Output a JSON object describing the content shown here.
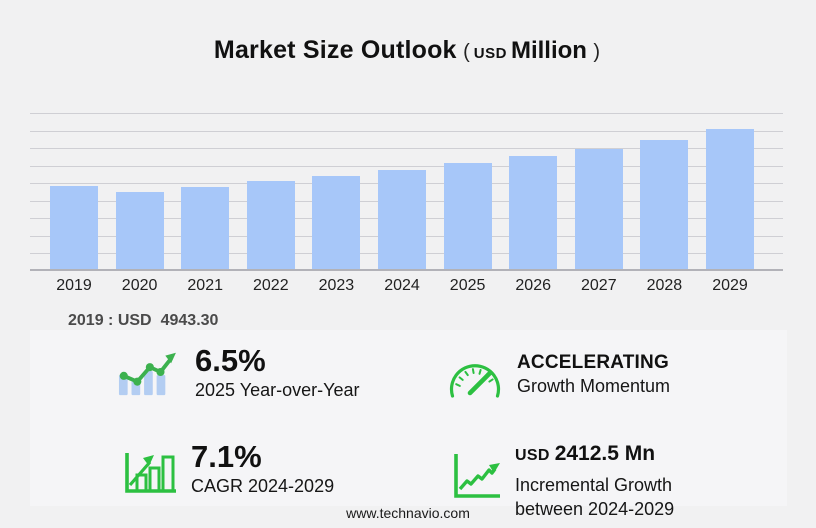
{
  "title": {
    "main": "Market Size Outlook",
    "open_paren": "(",
    "currency": "USD",
    "unit": "Million",
    "close_paren": ")"
  },
  "chart_data": {
    "type": "bar",
    "title": "Market Size Outlook (USD Million)",
    "unit": "USD Million",
    "categories": [
      "2019",
      "2020",
      "2021",
      "2022",
      "2023",
      "2024",
      "2025",
      "2026",
      "2027",
      "2028",
      "2029"
    ],
    "values": [
      4943.3,
      4560,
      4900,
      5260,
      5560,
      5900,
      6283.5,
      6740,
      7160,
      7700,
      8312.5
    ],
    "ylim": [
      0,
      9400
    ],
    "grid": true,
    "gridline_count": 9,
    "legend": "none",
    "bar_color": "#a7c7f9"
  },
  "base_year_note": {
    "label": "2019 : USD",
    "value": "4943.30"
  },
  "stats": {
    "yoy": {
      "icon": "bars-trend-up-icon",
      "value": "6.5%",
      "label": "2025 Year-over-Year"
    },
    "momentum": {
      "icon": "speedometer-icon",
      "value": "ACCELERATING",
      "label": "Growth Momentum"
    },
    "cagr": {
      "icon": "bar-chart-growth-icon",
      "value": "7.1%",
      "label": "CAGR 2024-2029"
    },
    "incremental": {
      "icon": "line-chart-growth-icon",
      "currency": "USD",
      "amount": "2412.5 Mn",
      "label_line1": "Incremental Growth",
      "label_line2": "between 2024-2029"
    }
  },
  "footer": {
    "website": "www.technavio.com"
  },
  "colors": {
    "background": "#f1f1f2",
    "panel": "#f5f5f7",
    "bar": "#a7c7f9",
    "gridline": "#cfcfd4",
    "axis": "#b2b2b8",
    "green": "#2cc041",
    "icon_bar_blue": "#b3cdf2",
    "text_dark": "#111111",
    "text_note": "#4a4a4a"
  }
}
